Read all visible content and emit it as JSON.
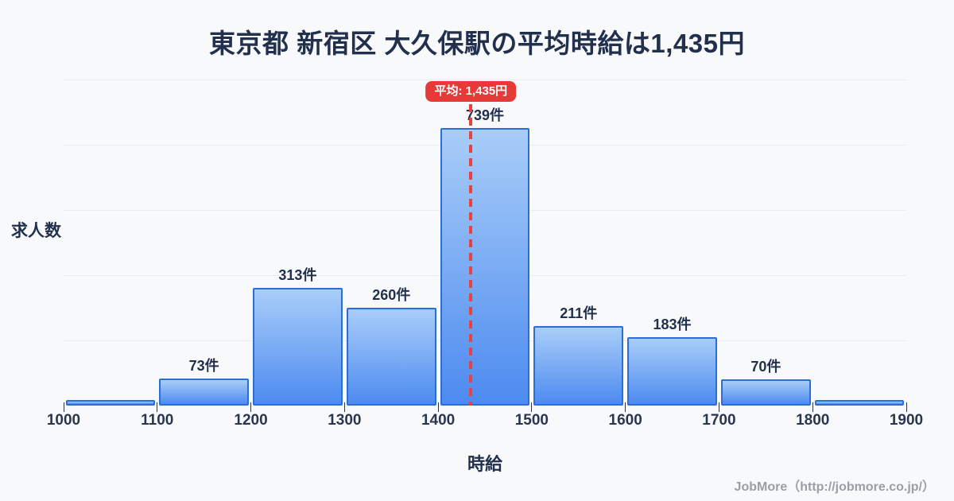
{
  "title": "東京都 新宿区 大久保駅の平均時給は1,435円",
  "average_badge": "平均: 1,435円",
  "footer": "JobMore（http://jobmore.co.jp/）",
  "colors": {
    "background": "#f8f9fb",
    "title_text": "#22304d",
    "bar_border": "#2b6fd6",
    "bar_fill_top": "#a9cdf8",
    "bar_fill_bottom": "#4d8bf0",
    "gridline": "#e8ebf1",
    "average_red": "#e53a38",
    "footer_gray": "#9b9ea6"
  },
  "chart_data": {
    "type": "bar",
    "subtype": "histogram",
    "title": "東京都 新宿区 大久保駅の平均時給は1,435円",
    "xlabel": "時給",
    "ylabel": "求人数",
    "bin_edges": [
      1000,
      1100,
      1200,
      1300,
      1400,
      1500,
      1600,
      1700,
      1800,
      1900
    ],
    "values": [
      15,
      73,
      313,
      260,
      739,
      211,
      183,
      70,
      15
    ],
    "bar_labels": [
      "",
      "73件",
      "313件",
      "260件",
      "739件",
      "211件",
      "183件",
      "70件",
      ""
    ],
    "average": 1435,
    "average_label": "平均: 1,435円",
    "ylim": [
      0,
      868
    ],
    "xlim": [
      1000,
      1900
    ],
    "grid": "horizontal",
    "gridline_count": 5,
    "legend": "none"
  }
}
